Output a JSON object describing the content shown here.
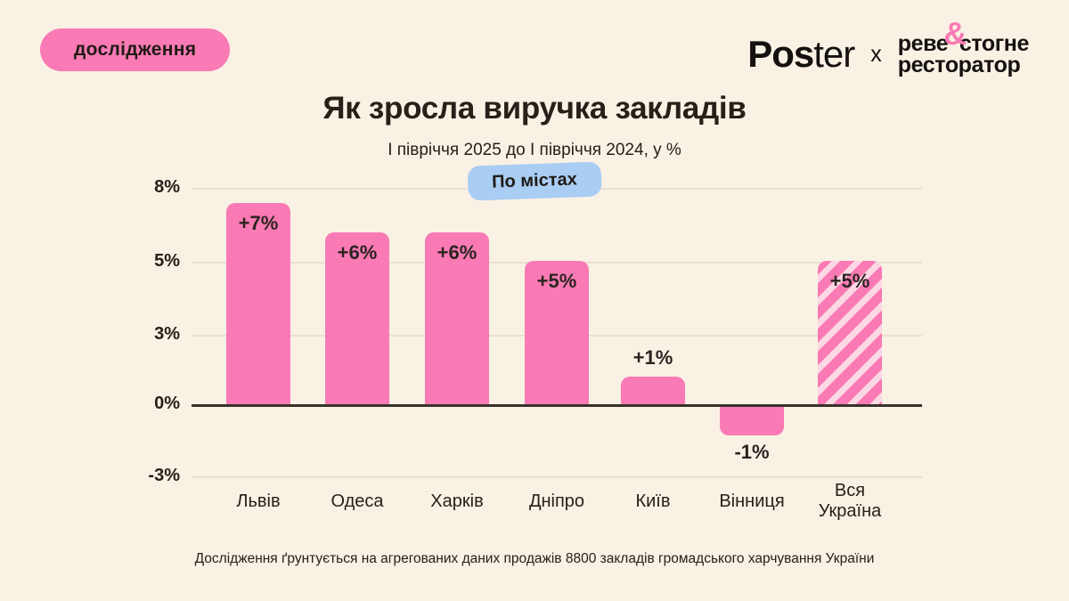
{
  "badge": {
    "label": "дослідження"
  },
  "brand": {
    "poster_bold": "Pos",
    "poster_light": "ter",
    "separator": "x",
    "partner_line1_left": "реве",
    "partner_amp": "&",
    "partner_line1_right": "стогне",
    "partner_line2": "ресторатор"
  },
  "chart_data": {
    "type": "bar",
    "title": "Як зросла виручка закладів",
    "subtitle": "І півріччя 2025 до І півріччя 2024, у %",
    "group_badge": "По містах",
    "categories": [
      "Львів",
      "Одеса",
      "Харків",
      "Дніпро",
      "Київ",
      "Вінниця",
      "Вся Україна"
    ],
    "slugs": [
      "lviv",
      "odesa",
      "kharkiv",
      "dnipro",
      "kyiv",
      "vinnytsia",
      "vsia-ukraina"
    ],
    "values": [
      7,
      6,
      6,
      5,
      1,
      -1,
      5
    ],
    "value_labels": [
      "+7%",
      "+6%",
      "+6%",
      "+5%",
      "+1%",
      "-1%",
      "+5%"
    ],
    "striped": [
      false,
      false,
      false,
      false,
      false,
      false,
      true
    ],
    "y_ticks": [
      "8%",
      "5%",
      "3%",
      "0%",
      "-3%"
    ],
    "y_tick_values": [
      8,
      5,
      3,
      0,
      -3
    ],
    "ylim": [
      -3,
      8
    ],
    "grid": true,
    "legend": "none",
    "colors": {
      "bar": "#f97ab4",
      "stripe_light": "#fbd8e4",
      "background": "#faf1e5",
      "accent_blue": "#a9cdf3"
    }
  },
  "footer": {
    "note": "Дослідження ґрунтується на агрегованих даних продажів 8800 закладів громадського харчування України"
  }
}
